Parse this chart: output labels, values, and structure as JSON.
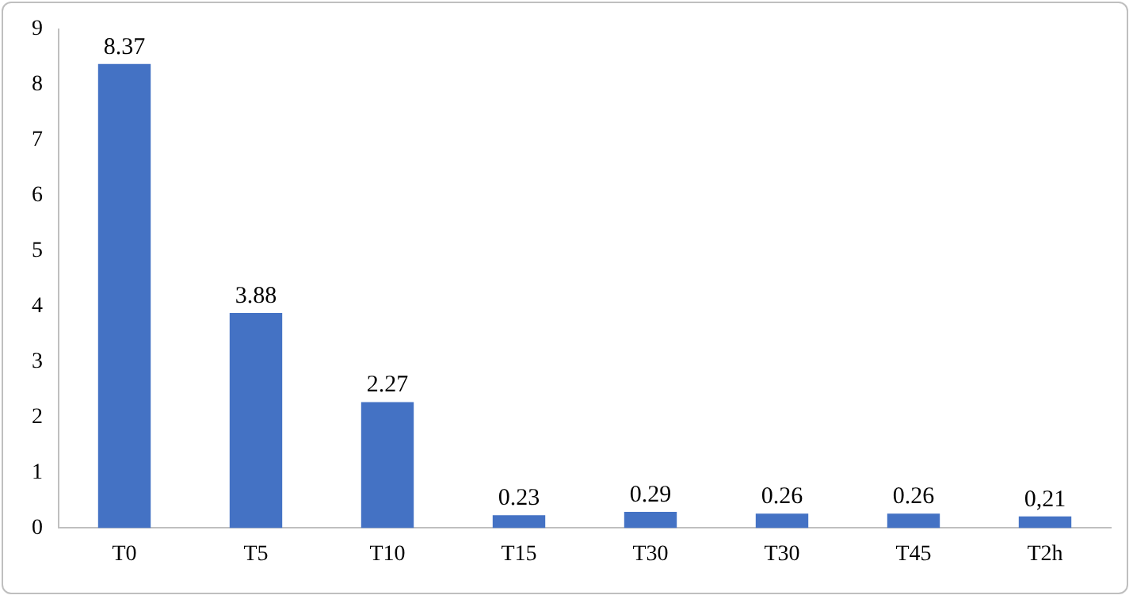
{
  "chart_data": {
    "type": "bar",
    "categories": [
      "T0",
      "T5",
      "T10",
      "T15",
      "T30",
      "T30",
      "T45",
      "T2h"
    ],
    "values": [
      8.37,
      3.88,
      2.27,
      0.23,
      0.29,
      0.26,
      0.26,
      0.21
    ],
    "value_labels": [
      "8.37",
      "3.88",
      "2.27",
      "0.23",
      "0.29",
      "0.26",
      "0.26",
      "0,21"
    ],
    "color": "#4472c4",
    "ylim": [
      0,
      9
    ],
    "yticks": [
      0,
      1,
      2,
      3,
      4,
      5,
      6,
      7,
      8,
      9
    ],
    "grid": false,
    "legend": false
  }
}
